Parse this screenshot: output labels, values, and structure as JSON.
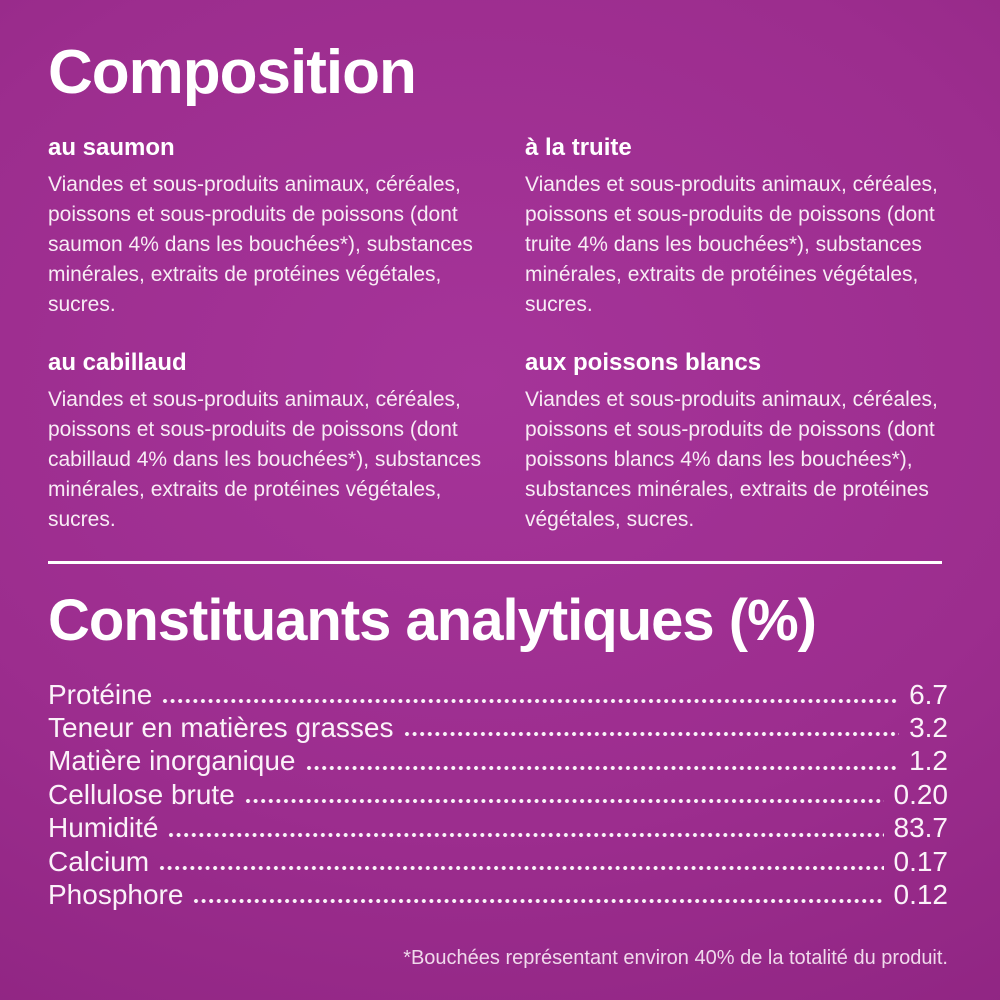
{
  "colors": {
    "background": "#9c2d8e",
    "background_edge": "#842072",
    "text": "#ffffff",
    "footnote_text": "#f0d9ec"
  },
  "composition": {
    "title": "Composition",
    "sections": [
      {
        "heading": "au saumon",
        "body": "Viandes et sous-produits animaux, céréales, poissons et sous-produits de poissons (dont saumon 4% dans les bouchées*), substances minérales, extraits de protéines végétales, sucres."
      },
      {
        "heading": "à la truite",
        "body": "Viandes et sous-produits animaux, céréales, poissons et sous-produits de poissons (dont truite 4% dans les bouchées*), substances minérales, extraits de protéines végétales, sucres."
      },
      {
        "heading": "au cabillaud",
        "body": "Viandes et sous-produits animaux, céréales, poissons et sous-produits de poissons (dont cabillaud 4% dans les bouchées*), substances minérales, extraits de protéines végétales, sucres."
      },
      {
        "heading": "aux poissons blancs",
        "body": "Viandes et sous-produits animaux, céréales, poissons et sous-produits de poissons (dont poissons blancs 4% dans les bouchées*), substances minérales, extraits de protéines végétales, sucres."
      }
    ]
  },
  "analytical": {
    "title": "Constituants analytiques (%)",
    "rows": [
      {
        "label": "Protéine",
        "value": "6.7"
      },
      {
        "label": "Teneur en matières grasses",
        "value": "3.2"
      },
      {
        "label": "Matière inorganique",
        "value": "1.2"
      },
      {
        "label": "Cellulose brute",
        "value": "0.20"
      },
      {
        "label": "Humidité",
        "value": "83.7"
      },
      {
        "label": "Calcium",
        "value": "0.17"
      },
      {
        "label": "Phosphore",
        "value": "0.12"
      }
    ]
  },
  "footnote": "*Bouchées représentant environ 40% de la totalité du produit."
}
